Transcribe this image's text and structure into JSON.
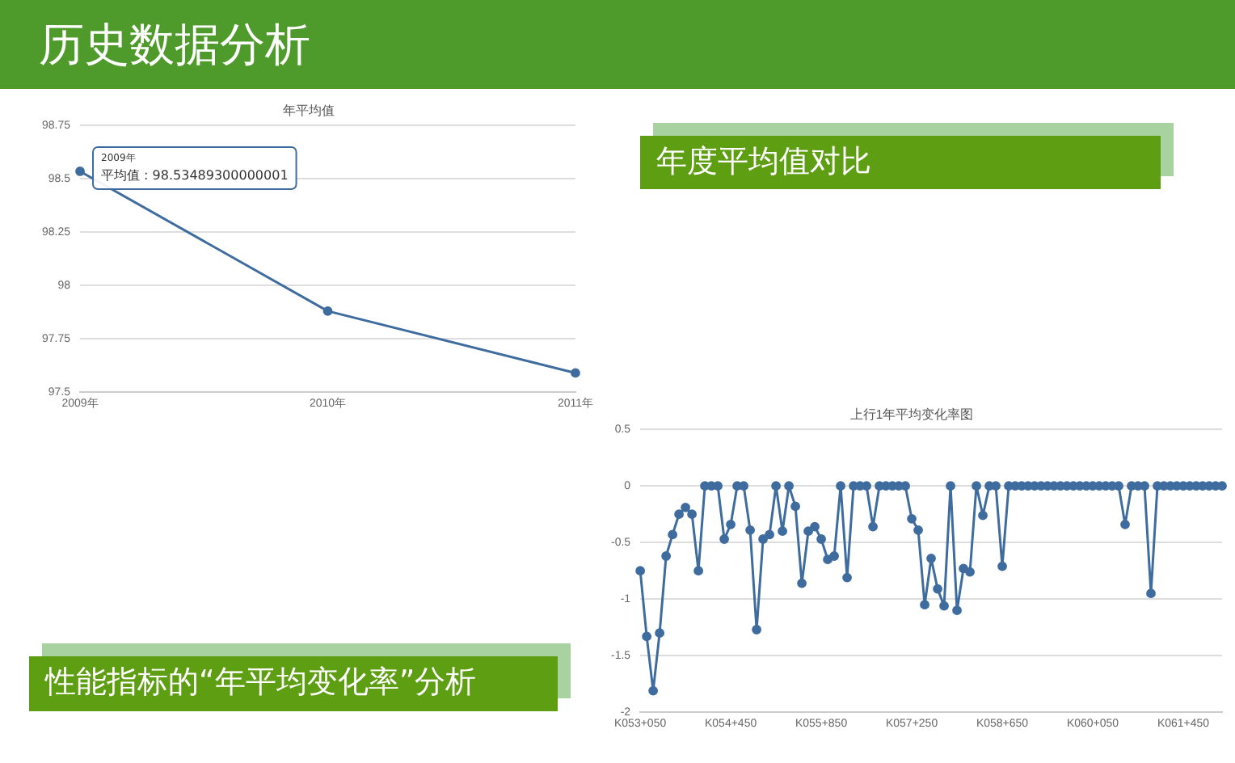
{
  "chart_data": [
    {
      "type": "line",
      "title": "年平均值",
      "categories": [
        "2009年",
        "2010年",
        "2011年"
      ],
      "series": [
        {
          "color": "#3f6c9e",
          "values": [
            98.535,
            97.88,
            97.59
          ]
        }
      ],
      "ylim": [
        97.5,
        98.75
      ],
      "yticks": [
        97.5,
        97.75,
        98,
        98.25,
        98.5,
        98.75
      ],
      "grid": "y",
      "legend": false,
      "marker": "circle",
      "annotations": [
        "历史数据分析",
        "年度平均值对比",
        {
          "text": "2009年",
          "x": "2009年",
          "y": 98.53489300000001
        },
        {
          "text": "平均值 : 98.53489300000001",
          "x": "2009年",
          "y": 98.53489300000001
        }
      ]
    },
    {
      "type": "line",
      "title": "上行1年平均变化率图",
      "categories": [
        "K053+050",
        null,
        null,
        null,
        null,
        null,
        null,
        null,
        null,
        null,
        null,
        null,
        null,
        null,
        "K054+450",
        null,
        null,
        null,
        null,
        null,
        null,
        null,
        null,
        null,
        null,
        null,
        null,
        null,
        "K055+850",
        null,
        null,
        null,
        null,
        null,
        null,
        null,
        null,
        null,
        null,
        null,
        null,
        null,
        "K057+250",
        null,
        null,
        null,
        null,
        null,
        null,
        null,
        null,
        null,
        null,
        null,
        null,
        null,
        "K058+650",
        null,
        null,
        null,
        null,
        null,
        null,
        null,
        null,
        null,
        null,
        null,
        null,
        null,
        "K060+050",
        null,
        null,
        null,
        null,
        null,
        null,
        null,
        null,
        null,
        null,
        null,
        null,
        null,
        "K061+450",
        null,
        null,
        null,
        null,
        null,
        null
      ],
      "series": [
        {
          "color": "#3f6c9e",
          "values": [
            -0.75,
            -1.33,
            -1.81,
            -1.3,
            -0.62,
            -0.43,
            -0.25,
            -0.19,
            -0.25,
            -0.75,
            0,
            0,
            0,
            -0.47,
            -0.34,
            0,
            0,
            -0.39,
            -1.27,
            -0.47,
            -0.43,
            0,
            -0.4,
            0,
            -0.18,
            -0.86,
            -0.4,
            -0.36,
            -0.47,
            -0.65,
            -0.62,
            0,
            -0.81,
            0,
            0,
            0,
            -0.36,
            0,
            0,
            0,
            0,
            0,
            -0.29,
            -0.39,
            -1.05,
            -0.64,
            -0.91,
            -1.06,
            0,
            -1.1,
            -0.73,
            -0.76,
            0,
            -0.26,
            0,
            0,
            -0.71,
            0,
            0,
            0,
            0,
            0,
            0,
            0,
            0,
            0,
            0,
            0,
            0,
            0,
            0,
            0,
            0,
            0,
            0,
            -0.34,
            0,
            0,
            0,
            -0.95,
            0,
            0,
            0,
            0,
            0,
            0,
            0,
            0,
            0,
            0,
            0
          ]
        }
      ],
      "ylim": [
        -2,
        0.5
      ],
      "yticks": [
        -2,
        -1.5,
        -1,
        -0.5,
        0,
        0.5
      ],
      "grid": "y",
      "legend": false,
      "marker": "circle",
      "annotations": [
        "性能指标的“年平均变化率”分析"
      ]
    }
  ]
}
